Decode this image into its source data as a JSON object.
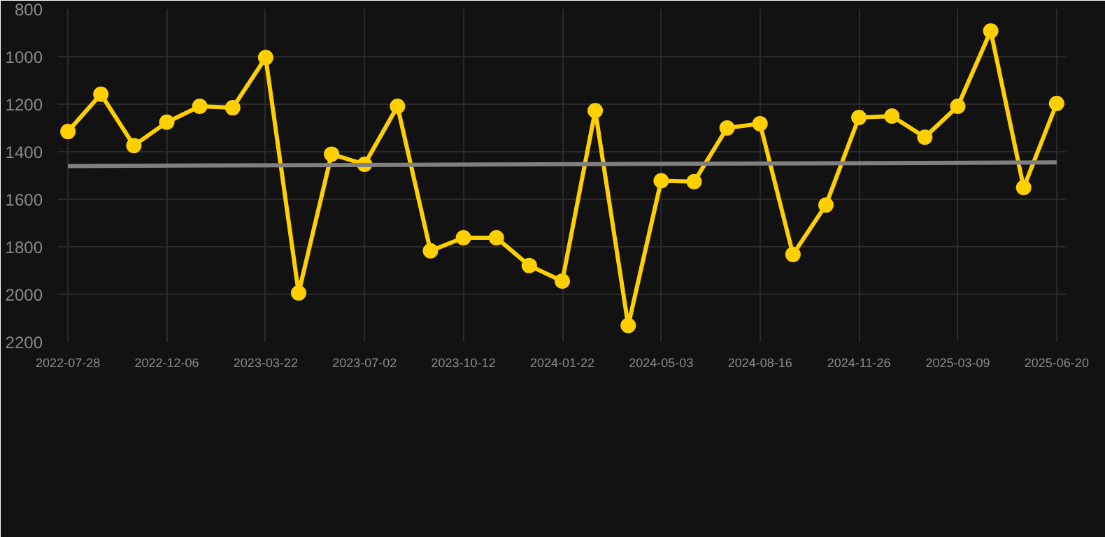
{
  "chart_data": {
    "type": "line",
    "categories": [
      "2022-07-28",
      null,
      null,
      "2022-12-06",
      null,
      null,
      "2023-03-22",
      null,
      null,
      "2023-07-02",
      null,
      null,
      "2023-10-12",
      null,
      null,
      "2024-01-22",
      null,
      null,
      "2024-05-03",
      null,
      null,
      "2024-08-16",
      null,
      null,
      "2024-11-26",
      null,
      null,
      "2025-03-09",
      null,
      null,
      "2025-06-20"
    ],
    "series": [
      {
        "color": "#ffd000",
        "marker": "circle",
        "values": [
          1315,
          1158,
          1374,
          1276,
          1209,
          1215,
          1004,
          1994,
          1410,
          1453,
          1209,
          1817,
          1762,
          1762,
          1879,
          1944,
          1227,
          2131,
          1522,
          1526,
          1300,
          1282,
          1832,
          1624,
          1256,
          1250,
          1339,
          1209,
          892,
          1551,
          1197
        ]
      },
      {
        "color": "#808080",
        "marker": "none",
        "values": [
          1460,
          null,
          null,
          null,
          null,
          null,
          null,
          null,
          null,
          null,
          null,
          null,
          null,
          null,
          null,
          null,
          null,
          null,
          null,
          null,
          null,
          null,
          null,
          null,
          null,
          null,
          null,
          null,
          null,
          null,
          1445
        ]
      }
    ],
    "ylim": [
      2200,
      800
    ],
    "yticks": [
      800,
      1000,
      1200,
      1400,
      1600,
      1800,
      2000,
      2200
    ],
    "grid": true
  }
}
